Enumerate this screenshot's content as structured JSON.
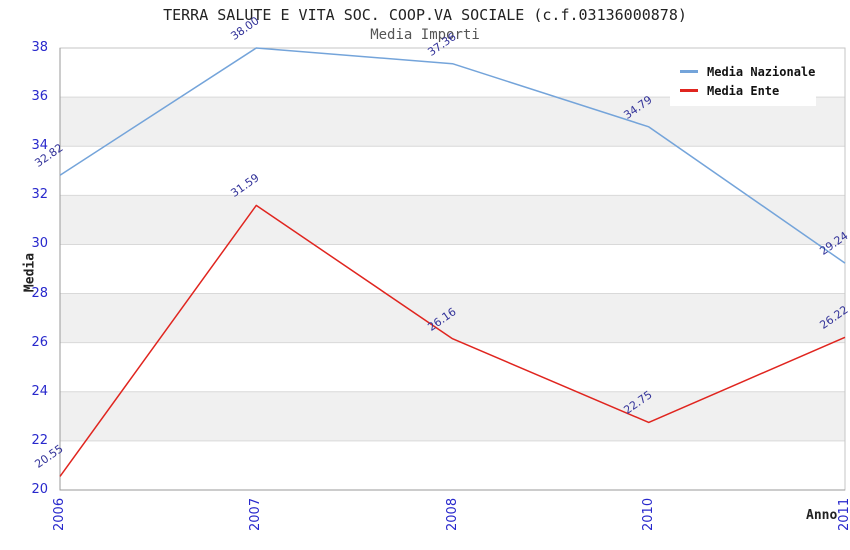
{
  "chart_data": {
    "type": "line",
    "title": "TERRA SALUTE E VITA SOC. COOP.VA SOCIALE (c.f.03136000878)",
    "subtitle": "Media Importi",
    "xlabel": "Anno",
    "ylabel": "Media",
    "categories": [
      "2006",
      "2007",
      "2008",
      "2010",
      "2011"
    ],
    "series": [
      {
        "name": "Media Nazionale",
        "color": "#74a4da",
        "values": [
          32.82,
          38.0,
          37.36,
          34.79,
          29.24
        ]
      },
      {
        "name": "Media Ente",
        "color": "#e0251f",
        "values": [
          20.55,
          31.59,
          26.16,
          22.75,
          26.22
        ]
      }
    ],
    "point_labels_visible": true,
    "ylim": [
      20,
      38
    ],
    "yticks": [
      20,
      22,
      24,
      26,
      28,
      30,
      32,
      34,
      36,
      38
    ],
    "grid": "horizontal",
    "legend_position": "top-right"
  },
  "styles": {
    "tick_label_color": "#2828cc",
    "point_label_color": "#323299",
    "band_fill": "#f0f0f0",
    "band_fill_alt": "#ffffff",
    "gridline_color": "#d9d9d9",
    "plot_border_color": "#c6c6c6",
    "axis_line_color": "#9a9a9a",
    "title_color": "#222222",
    "subtitle_color": "#555555",
    "legend_text_color": "#111111"
  }
}
